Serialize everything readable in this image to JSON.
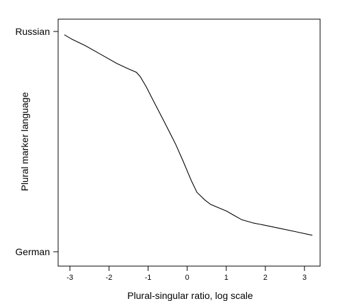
{
  "chart_data": {
    "type": "line",
    "title": "",
    "xlabel": "Plural-singular ratio, log scale",
    "ylabel": "Plural marker language",
    "xlim": [
      -3.3,
      3.4
    ],
    "ylim": [
      0,
      1
    ],
    "x_ticks": [
      -3,
      -2,
      -1,
      0,
      1,
      2,
      3
    ],
    "y_tick_values": [
      0,
      1
    ],
    "y_tick_labels": [
      "German",
      "Russian"
    ],
    "grid": false,
    "legend": "none",
    "series": [
      {
        "x": [
          -3.14,
          -2.95,
          -2.6,
          -2.2,
          -1.8,
          -1.5,
          -1.3,
          -1.2,
          -1.05,
          -0.85,
          -0.6,
          -0.3,
          -0.1,
          0.1,
          0.25,
          0.45,
          0.6,
          0.8,
          1.0,
          1.2,
          1.4,
          1.7,
          2.0,
          2.4,
          2.8,
          3.2
        ],
        "y": [
          0.985,
          0.965,
          0.935,
          0.895,
          0.855,
          0.83,
          0.815,
          0.795,
          0.75,
          0.68,
          0.595,
          0.49,
          0.41,
          0.325,
          0.27,
          0.235,
          0.215,
          0.2,
          0.185,
          0.165,
          0.145,
          0.13,
          0.12,
          0.105,
          0.09,
          0.075
        ]
      }
    ]
  }
}
